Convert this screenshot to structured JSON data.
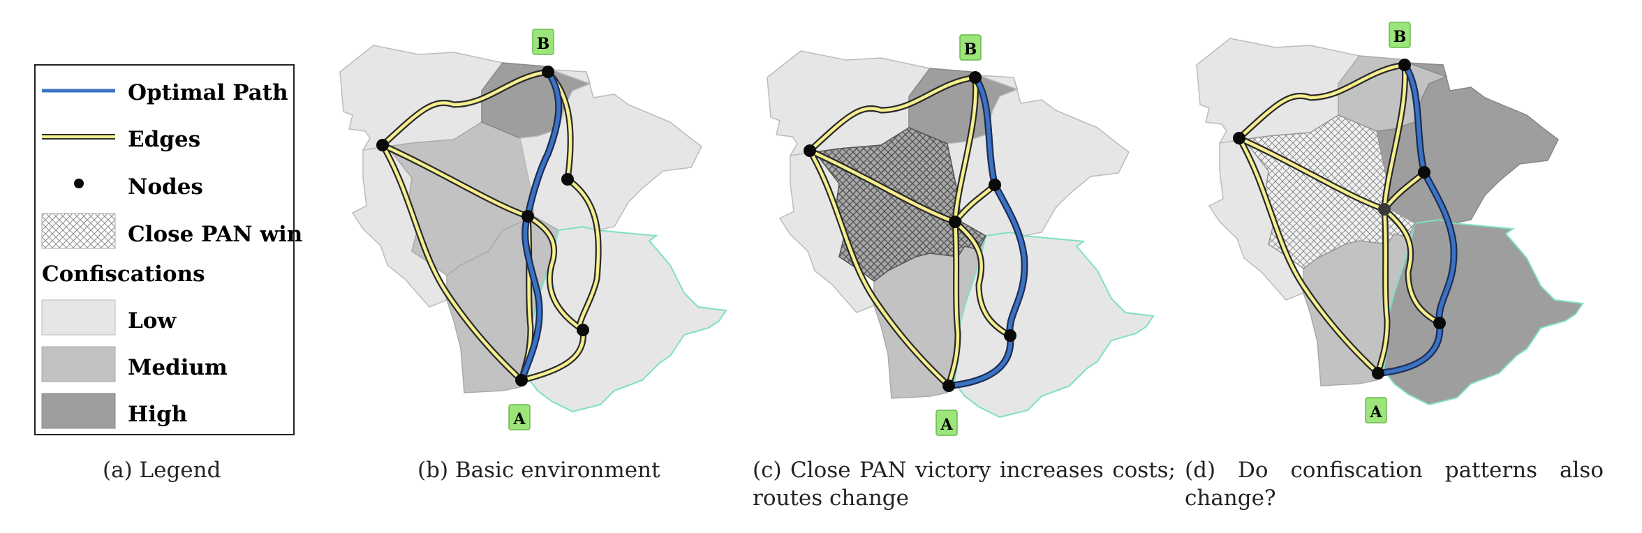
{
  "legend": {
    "optimal_path": "Optimal Path",
    "edges": "Edges",
    "nodes": "Nodes",
    "close_pan_win": "Close PAN win",
    "confiscations": "Confiscations",
    "low": "Low",
    "medium": "Medium",
    "high": "High"
  },
  "node_labels": {
    "a": "A",
    "b": "B"
  },
  "captions": {
    "a": "(a) Legend",
    "b": "(b) Basic environment",
    "c": "(c) Close PAN victory increases costs; routes change",
    "d": "(d) Do confiscation patterns also change?"
  },
  "colors": {
    "optimal_path": "#3b73c4",
    "edge_fill": "#f6ef8e",
    "node": "#0a0a0a",
    "label_box": "#9be57a",
    "low": "#e6e6e6",
    "medium": "#c2c2c2",
    "high": "#9e9e9e",
    "region_outline": "#7ee0c4"
  }
}
